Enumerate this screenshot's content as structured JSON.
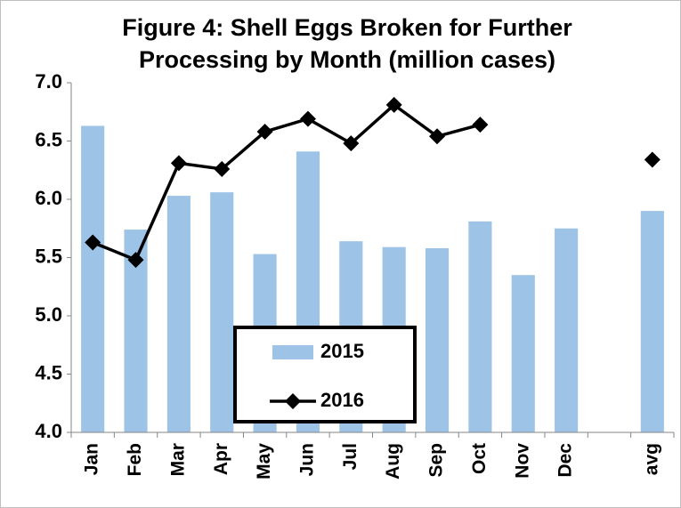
{
  "chart_data": {
    "type": "bar-line",
    "title": [
      "Figure  4: Shell Eggs Broken for Further",
      "Processing by Month (million cases)"
    ],
    "categories": [
      "Jan",
      "Feb",
      "Mar",
      "Apr",
      "May",
      "Jun",
      "Jul",
      "Aug",
      "Sep",
      "Oct",
      "Nov",
      "Dec",
      null,
      "avg"
    ],
    "series": [
      {
        "name": "2015",
        "type": "bar",
        "color": "#9dc3e6",
        "values": [
          6.63,
          5.74,
          6.03,
          6.06,
          5.53,
          6.41,
          5.64,
          5.59,
          5.58,
          5.81,
          5.35,
          5.75,
          null,
          5.9
        ]
      },
      {
        "name": "2016",
        "type": "line",
        "color": "#000000",
        "values": [
          5.63,
          5.48,
          6.31,
          6.26,
          6.58,
          6.69,
          6.48,
          6.81,
          6.54,
          6.64,
          null,
          null,
          null,
          6.34
        ]
      }
    ],
    "ylim": [
      4,
      7
    ],
    "yticks": [
      {
        "value": 4,
        "label": "4.0"
      },
      {
        "value": 4.5,
        "label": "4.5"
      },
      {
        "value": 5,
        "label": "5.0"
      },
      {
        "value": 5.5,
        "label": "5.5"
      },
      {
        "value": 6,
        "label": "6.0"
      },
      {
        "value": 6.5,
        "label": "6.5"
      },
      {
        "value": 7,
        "label": "7.0"
      }
    ],
    "grid": false
  }
}
